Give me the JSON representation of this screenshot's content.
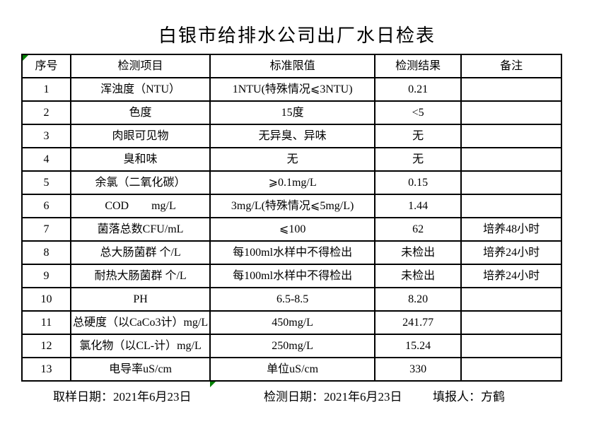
{
  "title": "白银市给排水公司出厂水日检表",
  "colors": {
    "background": "#ffffff",
    "border": "#000000",
    "text": "#000000",
    "marker_green": "#008000"
  },
  "table": {
    "headers": [
      "序号",
      "检测项目",
      "标准限值",
      "检测结果",
      "备注"
    ],
    "rows": [
      {
        "no": "1",
        "item": "浑浊度（NTU）",
        "limit": "1NTU(特殊情况⩽3NTU)",
        "result": "0.21",
        "note": ""
      },
      {
        "no": "2",
        "item": "色度",
        "limit": "15度",
        "result": "<5",
        "note": ""
      },
      {
        "no": "3",
        "item": "肉眼可见物",
        "limit": "无异臭、异味",
        "result": "无",
        "note": ""
      },
      {
        "no": "4",
        "item": "臭和味",
        "limit": "无",
        "result": "无",
        "note": ""
      },
      {
        "no": "5",
        "item": "余氯（二氧化碳）",
        "limit": "⩾0.1mg/L",
        "result": "0.15",
        "note": ""
      },
      {
        "no": "6",
        "item": "COD        mg/L",
        "limit": "3mg/L(特殊情况⩽5mg/L)",
        "result": "1.44",
        "note": ""
      },
      {
        "no": "7",
        "item": "菌落总数CFU/mL",
        "limit": "⩽100",
        "result": "62",
        "note": "培养48小时"
      },
      {
        "no": "8",
        "item": "总大肠菌群 个/L",
        "limit": "每100ml水样中不得检出",
        "result": "未检出",
        "note": "培养24小时"
      },
      {
        "no": "9",
        "item": "耐热大肠菌群 个/L",
        "limit": "每100ml水样中不得检出",
        "result": "未检出",
        "note": "培养24小时"
      },
      {
        "no": "10",
        "item": "PH",
        "limit": "6.5-8.5",
        "result": "8.20",
        "note": ""
      },
      {
        "no": "11",
        "item": "总硬度（以CaCo3计）mg/L",
        "limit": "450mg/L",
        "result": "241.77",
        "note": ""
      },
      {
        "no": "12",
        "item": "氯化物（以CL-计）mg/L",
        "limit": "250mg/L",
        "result": "15.24",
        "note": ""
      },
      {
        "no": "13",
        "item": "电导率uS/cm",
        "limit": "单位uS/cm",
        "result": "330",
        "note": ""
      }
    ]
  },
  "footer": {
    "sample_date": "取样日期：2021年6月23日",
    "test_date": "检测日期：2021年6月23日",
    "reporter": "填报人：方鹤"
  }
}
